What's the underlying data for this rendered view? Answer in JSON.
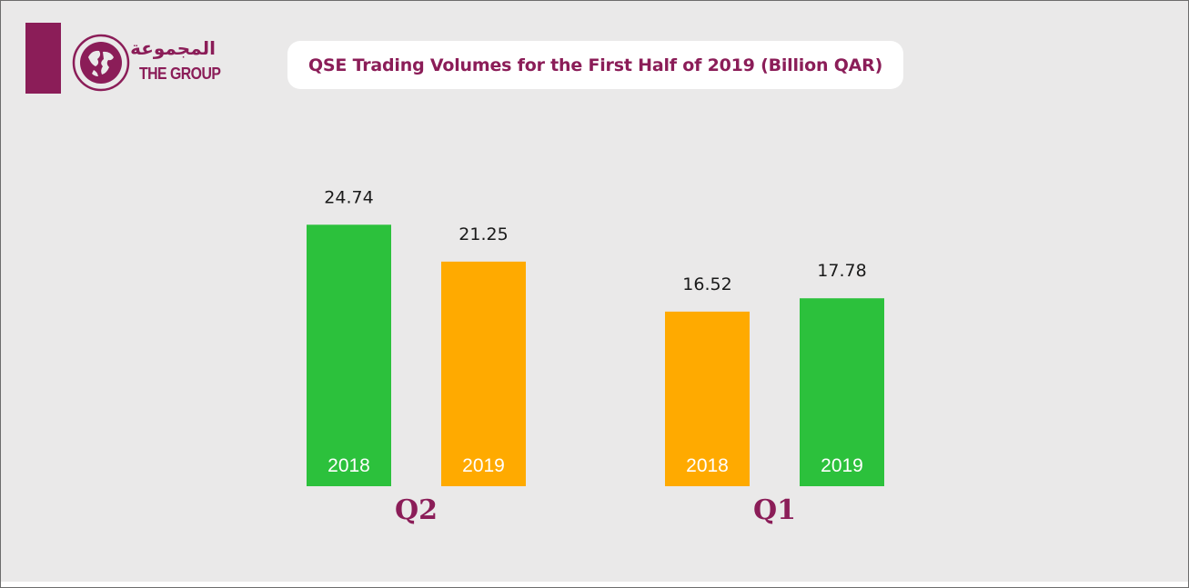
{
  "brand": {
    "name_ar": "المجموعة",
    "name_en": "THE GROUP",
    "logo_icon": "globe-icon",
    "color": "#8b1d58"
  },
  "title": "QSE Trading Volumes for the First Half of 2019 (Billion QAR)",
  "colors": {
    "green": "#2cc13c",
    "orange": "#ffaa00",
    "accent": "#8b1d58",
    "background": "#eae9e9"
  },
  "chart_data": {
    "type": "bar",
    "title": "QSE Trading Volumes for the First Half of 2019 (Billion QAR)",
    "ylabel": "",
    "xlabel": "",
    "ylim": [
      0,
      30
    ],
    "grid": false,
    "legend": "none",
    "groups": [
      {
        "label": "Q2",
        "bars": [
          {
            "category": "2018",
            "value": 24.74,
            "value_label": "24.74",
            "color": "#2cc13c"
          },
          {
            "category": "2019",
            "value": 21.25,
            "value_label": "21.25",
            "color": "#ffaa00"
          }
        ]
      },
      {
        "label": "Q1",
        "bars": [
          {
            "category": "2018",
            "value": 16.52,
            "value_label": "16.52",
            "color": "#ffaa00"
          },
          {
            "category": "2019",
            "value": 17.78,
            "value_label": "17.78",
            "color": "#2cc13c"
          }
        ]
      }
    ]
  }
}
